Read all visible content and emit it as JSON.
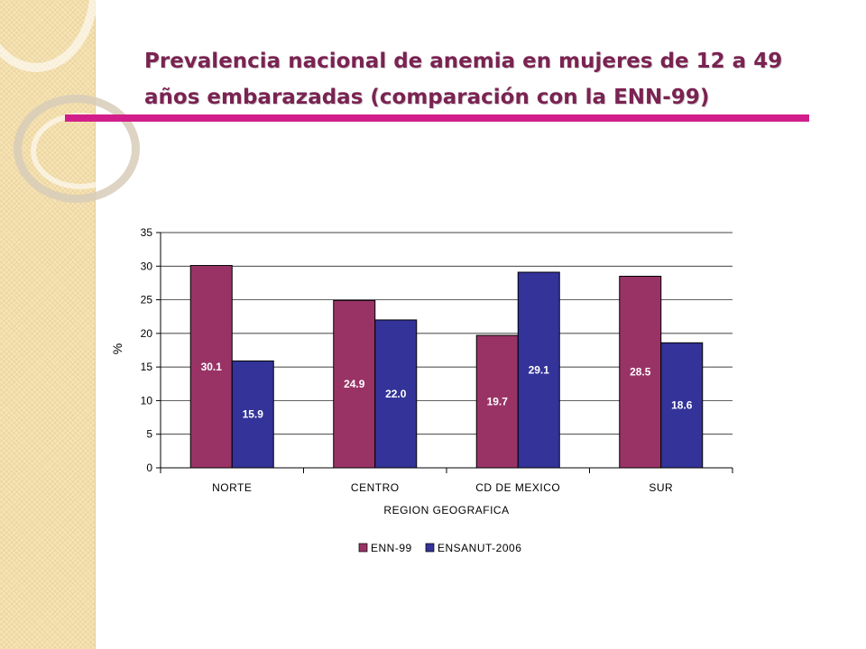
{
  "slide": {
    "title_line1": "Prevalencia nacional de anemia en mujeres de 12 a 49",
    "title_line2": "años embarazadas (comparación con la ENN-99)",
    "accent_color": "#d21e8a",
    "title_color": "#7a2352"
  },
  "chart_data": {
    "type": "bar",
    "categories": [
      "NORTE",
      "CENTRO",
      "CD DE MEXICO",
      "SUR"
    ],
    "series": [
      {
        "name": "ENN-99",
        "values": [
          30.1,
          24.9,
          19.7,
          28.5
        ],
        "color": "#993366"
      },
      {
        "name": "ENSANUT-2006",
        "values": [
          15.9,
          22.0,
          29.1,
          18.6
        ],
        "color": "#333399"
      }
    ],
    "data_labels": [
      [
        "30.1",
        "24.9",
        "19.7",
        "28.5"
      ],
      [
        "15.9",
        "22.0",
        "29.1",
        "18.6"
      ]
    ],
    "xlabel": "REGION GEOGRAFICA",
    "ylabel": "%",
    "ylim": [
      0,
      35
    ],
    "yticks": [
      "0",
      "5",
      "10",
      "15",
      "20",
      "25",
      "30",
      "35"
    ],
    "grid": true,
    "legend_position": "bottom"
  }
}
